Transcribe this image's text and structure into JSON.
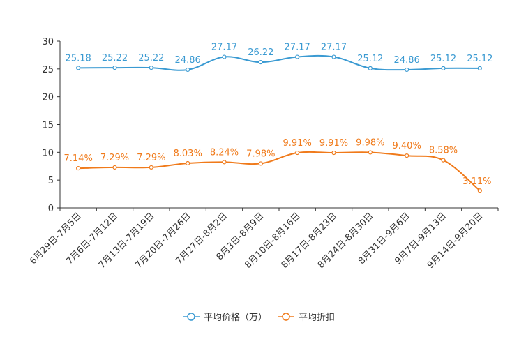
{
  "chart_data": {
    "type": "line",
    "categories": [
      "6月29日-7月5日",
      "7月6日-7月12日",
      "7月13日-7月19日",
      "7月20日-7月26日",
      "7月27日-8月2日",
      "8月3日-8月9日",
      "8月10日-8月16日",
      "8月17日-8月23日",
      "8月24日-8月30日",
      "8月31日-9月6日",
      "9月7日-9月13日",
      "9月14日-9月20日"
    ],
    "ylim": [
      0,
      30
    ],
    "yticks": [
      "0",
      "5",
      "10",
      "15",
      "20",
      "25",
      "30"
    ],
    "series": [
      {
        "name": "平均价格（万）",
        "color": "#3a9ad2",
        "values": [
          25.18,
          25.22,
          25.22,
          24.86,
          27.17,
          26.22,
          27.17,
          27.17,
          25.12,
          24.86,
          25.12,
          25.12
        ],
        "labels": [
          "25.18",
          "25.22",
          "25.22",
          "24.86",
          "27.17",
          "26.22",
          "27.17",
          "27.17",
          "25.12",
          "24.86",
          "25.12",
          "25.12"
        ]
      },
      {
        "name": "平均折扣",
        "color": "#f07a1a",
        "values": [
          7.14,
          7.29,
          7.29,
          8.03,
          8.24,
          7.98,
          9.91,
          9.91,
          9.98,
          9.4,
          8.58,
          3.11
        ],
        "labels": [
          "7.14%",
          "7.29%",
          "7.29%",
          "8.03%",
          "8.24%",
          "7.98%",
          "9.91%",
          "9.91%",
          "9.98%",
          "9.40%",
          "8.58%",
          "3.11%"
        ]
      }
    ]
  }
}
